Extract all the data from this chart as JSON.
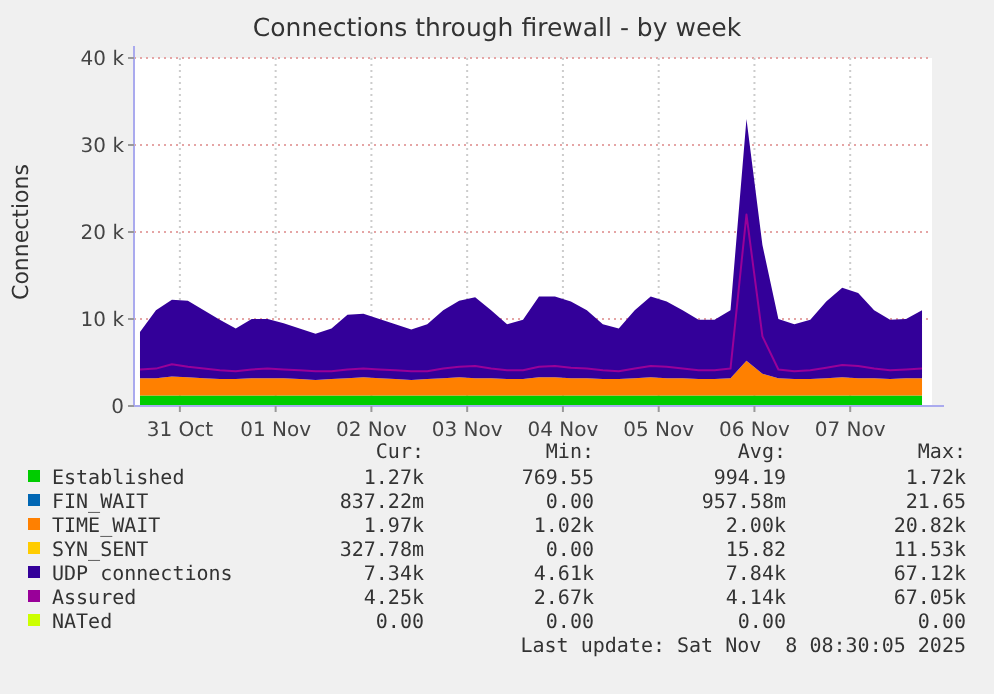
{
  "chart_data": {
    "type": "area",
    "title": "Connections through firewall - by week",
    "ylabel": "Connections",
    "stacked": true,
    "grid": true,
    "legend": "bottom",
    "x": [
      "2025-10-31T02:00",
      "2025-10-31T06:00",
      "2025-10-31T10:00",
      "2025-10-31T14:00",
      "2025-10-31T18:00",
      "2025-10-31T22:00",
      "2025-11-01T02:00",
      "2025-11-01T06:00",
      "2025-11-01T10:00",
      "2025-11-01T14:00",
      "2025-11-01T18:00",
      "2025-11-01T22:00",
      "2025-11-02T02:00",
      "2025-11-02T06:00",
      "2025-11-02T10:00",
      "2025-11-02T14:00",
      "2025-11-02T18:00",
      "2025-11-02T22:00",
      "2025-11-03T02:00",
      "2025-11-03T06:00",
      "2025-11-03T10:00",
      "2025-11-03T14:00",
      "2025-11-03T18:00",
      "2025-11-03T22:00",
      "2025-11-04T02:00",
      "2025-11-04T06:00",
      "2025-11-04T10:00",
      "2025-11-04T14:00",
      "2025-11-04T18:00",
      "2025-11-04T22:00",
      "2025-11-05T02:00",
      "2025-11-05T06:00",
      "2025-11-05T10:00",
      "2025-11-05T14:00",
      "2025-11-05T18:00",
      "2025-11-05T22:00",
      "2025-11-06T02:00",
      "2025-11-06T06:00",
      "2025-11-06T10:00",
      "2025-11-06T14:00",
      "2025-11-06T18:00",
      "2025-11-06T22:00",
      "2025-11-07T02:00",
      "2025-11-07T06:00",
      "2025-11-07T10:00",
      "2025-11-07T14:00",
      "2025-11-07T18:00",
      "2025-11-07T22:00",
      "2025-11-08T02:00",
      "2025-11-08T06:00"
    ],
    "xlim": [
      "2025-10-31T00:30",
      "2025-11-08T08:30"
    ],
    "xticks": [
      {
        "value": "2025-10-31T12:00",
        "label": "31 Oct"
      },
      {
        "value": "2025-11-01T12:00",
        "label": "01 Nov"
      },
      {
        "value": "2025-11-02T12:00",
        "label": "02 Nov"
      },
      {
        "value": "2025-11-03T12:00",
        "label": "03 Nov"
      },
      {
        "value": "2025-11-04T12:00",
        "label": "04 Nov"
      },
      {
        "value": "2025-11-05T12:00",
        "label": "05 Nov"
      },
      {
        "value": "2025-11-06T12:00",
        "label": "06 Nov"
      },
      {
        "value": "2025-11-07T12:00",
        "label": "07 Nov"
      }
    ],
    "ylim": [
      0,
      40000
    ],
    "yticks": [
      0,
      {
        "value": 10000,
        "label": "10 k"
      },
      {
        "value": 20000,
        "label": "20 k"
      },
      {
        "value": 30000,
        "label": "30 k"
      },
      {
        "value": 40000,
        "label": "40 k"
      }
    ],
    "series": [
      {
        "name": "Established",
        "color": "#00cc00",
        "values": [
          1200,
          1200,
          1200,
          1200,
          1200,
          1200,
          1200,
          1200,
          1200,
          1200,
          1200,
          1200,
          1200,
          1200,
          1200,
          1200,
          1200,
          1200,
          1200,
          1200,
          1200,
          1200,
          1200,
          1200,
          1200,
          1200,
          1200,
          1200,
          1200,
          1200,
          1200,
          1200,
          1200,
          1200,
          1200,
          1200,
          1200,
          1200,
          1200,
          1200,
          1200,
          1200,
          1200,
          1200,
          1200,
          1200,
          1200,
          1200,
          1200,
          1200
        ]
      },
      {
        "name": "FIN_WAIT",
        "color": "#0066b3",
        "values": [
          null,
          null,
          null,
          null,
          null,
          null,
          null,
          null,
          null,
          null,
          null,
          null,
          null,
          null,
          null,
          null,
          null,
          null,
          null,
          null,
          null,
          null,
          null,
          null,
          null,
          null,
          null,
          null,
          null,
          null,
          null,
          null,
          null,
          null,
          null,
          null,
          null,
          null,
          null,
          null,
          null,
          null,
          null,
          null,
          null,
          null,
          null,
          null,
          null,
          null
        ]
      },
      {
        "name": "TIME_WAIT",
        "color": "#ff8000",
        "values": [
          2000,
          2000,
          2200,
          2100,
          2000,
          1900,
          1900,
          2000,
          2000,
          2000,
          1900,
          1800,
          1900,
          2000,
          2100,
          2000,
          1900,
          1800,
          1900,
          2000,
          2100,
          2000,
          2000,
          1900,
          1900,
          2100,
          2100,
          2000,
          2000,
          1900,
          1900,
          2000,
          2100,
          2000,
          2000,
          1900,
          1900,
          2000,
          4000,
          2500,
          2000,
          1900,
          1900,
          2000,
          2100,
          2000,
          2000,
          1900,
          2000,
          2000
        ]
      },
      {
        "name": "SYN_SENT",
        "color": "#ffcc00",
        "values": [
          null,
          null,
          null,
          null,
          null,
          null,
          null,
          null,
          null,
          null,
          null,
          null,
          null,
          null,
          null,
          null,
          null,
          null,
          null,
          null,
          null,
          null,
          null,
          null,
          null,
          null,
          null,
          null,
          null,
          null,
          null,
          null,
          null,
          null,
          null,
          null,
          null,
          null,
          null,
          null,
          null,
          null,
          null,
          null,
          null,
          null,
          null,
          null,
          null,
          null
        ]
      },
      {
        "name": "UDP connections",
        "color": "#330099",
        "values": [
          5300,
          7800,
          8800,
          8800,
          7800,
          6800,
          5800,
          6800,
          6800,
          6300,
          5800,
          5300,
          5800,
          7300,
          7300,
          6800,
          6300,
          5800,
          6300,
          7800,
          8800,
          9300,
          7800,
          6300,
          6800,
          9300,
          9300,
          8800,
          7800,
          6300,
          5800,
          7800,
          9300,
          8800,
          7800,
          6800,
          6800,
          7800,
          27800,
          14800,
          6800,
          6300,
          6800,
          8800,
          10300,
          9800,
          7800,
          6800,
          6800,
          7800
        ]
      },
      {
        "name": "Assured",
        "type": "line",
        "color": "#990099",
        "values": [
          4200,
          4300,
          4800,
          4500,
          4300,
          4100,
          4000,
          4200,
          4300,
          4200,
          4100,
          4000,
          4000,
          4200,
          4300,
          4200,
          4100,
          4000,
          4000,
          4300,
          4500,
          4600,
          4300,
          4100,
          4100,
          4500,
          4600,
          4400,
          4300,
          4100,
          4000,
          4300,
          4600,
          4500,
          4300,
          4100,
          4100,
          4300,
          22000,
          8000,
          4200,
          4000,
          4100,
          4400,
          4700,
          4600,
          4300,
          4100,
          4200,
          4300
        ]
      },
      {
        "name": "NATed",
        "type": "line",
        "color": "#ccff00",
        "values": [
          null,
          null,
          null,
          null,
          null,
          null,
          null,
          null,
          null,
          null,
          null,
          null,
          null,
          null,
          null,
          null,
          null,
          null,
          null,
          null,
          null,
          null,
          null,
          null,
          null,
          null,
          null,
          null,
          null,
          null,
          null,
          null,
          null,
          null,
          null,
          null,
          null,
          null,
          null,
          null,
          null,
          null,
          null,
          null,
          null,
          null,
          null,
          null,
          null,
          null
        ]
      }
    ],
    "annotations": [
      "Cur:",
      "Min:",
      "Avg:",
      "Max:",
      "1.27k",
      "769.55",
      "994.19",
      "1.72k",
      "837.22m",
      "0.00",
      "957.58m",
      "21.65",
      "1.97k",
      "1.02k",
      "2.00k",
      "20.82k",
      "327.78m",
      "0.00",
      "15.82",
      "11.53k",
      "7.34k",
      "4.61k",
      "7.84k",
      "67.12k",
      "4.25k",
      "2.67k",
      "4.14k",
      "67.05k",
      "0.00",
      "0.00",
      "0.00",
      "0.00",
      "Last update: Sat Nov  8 08:30:05 2025"
    ]
  }
}
